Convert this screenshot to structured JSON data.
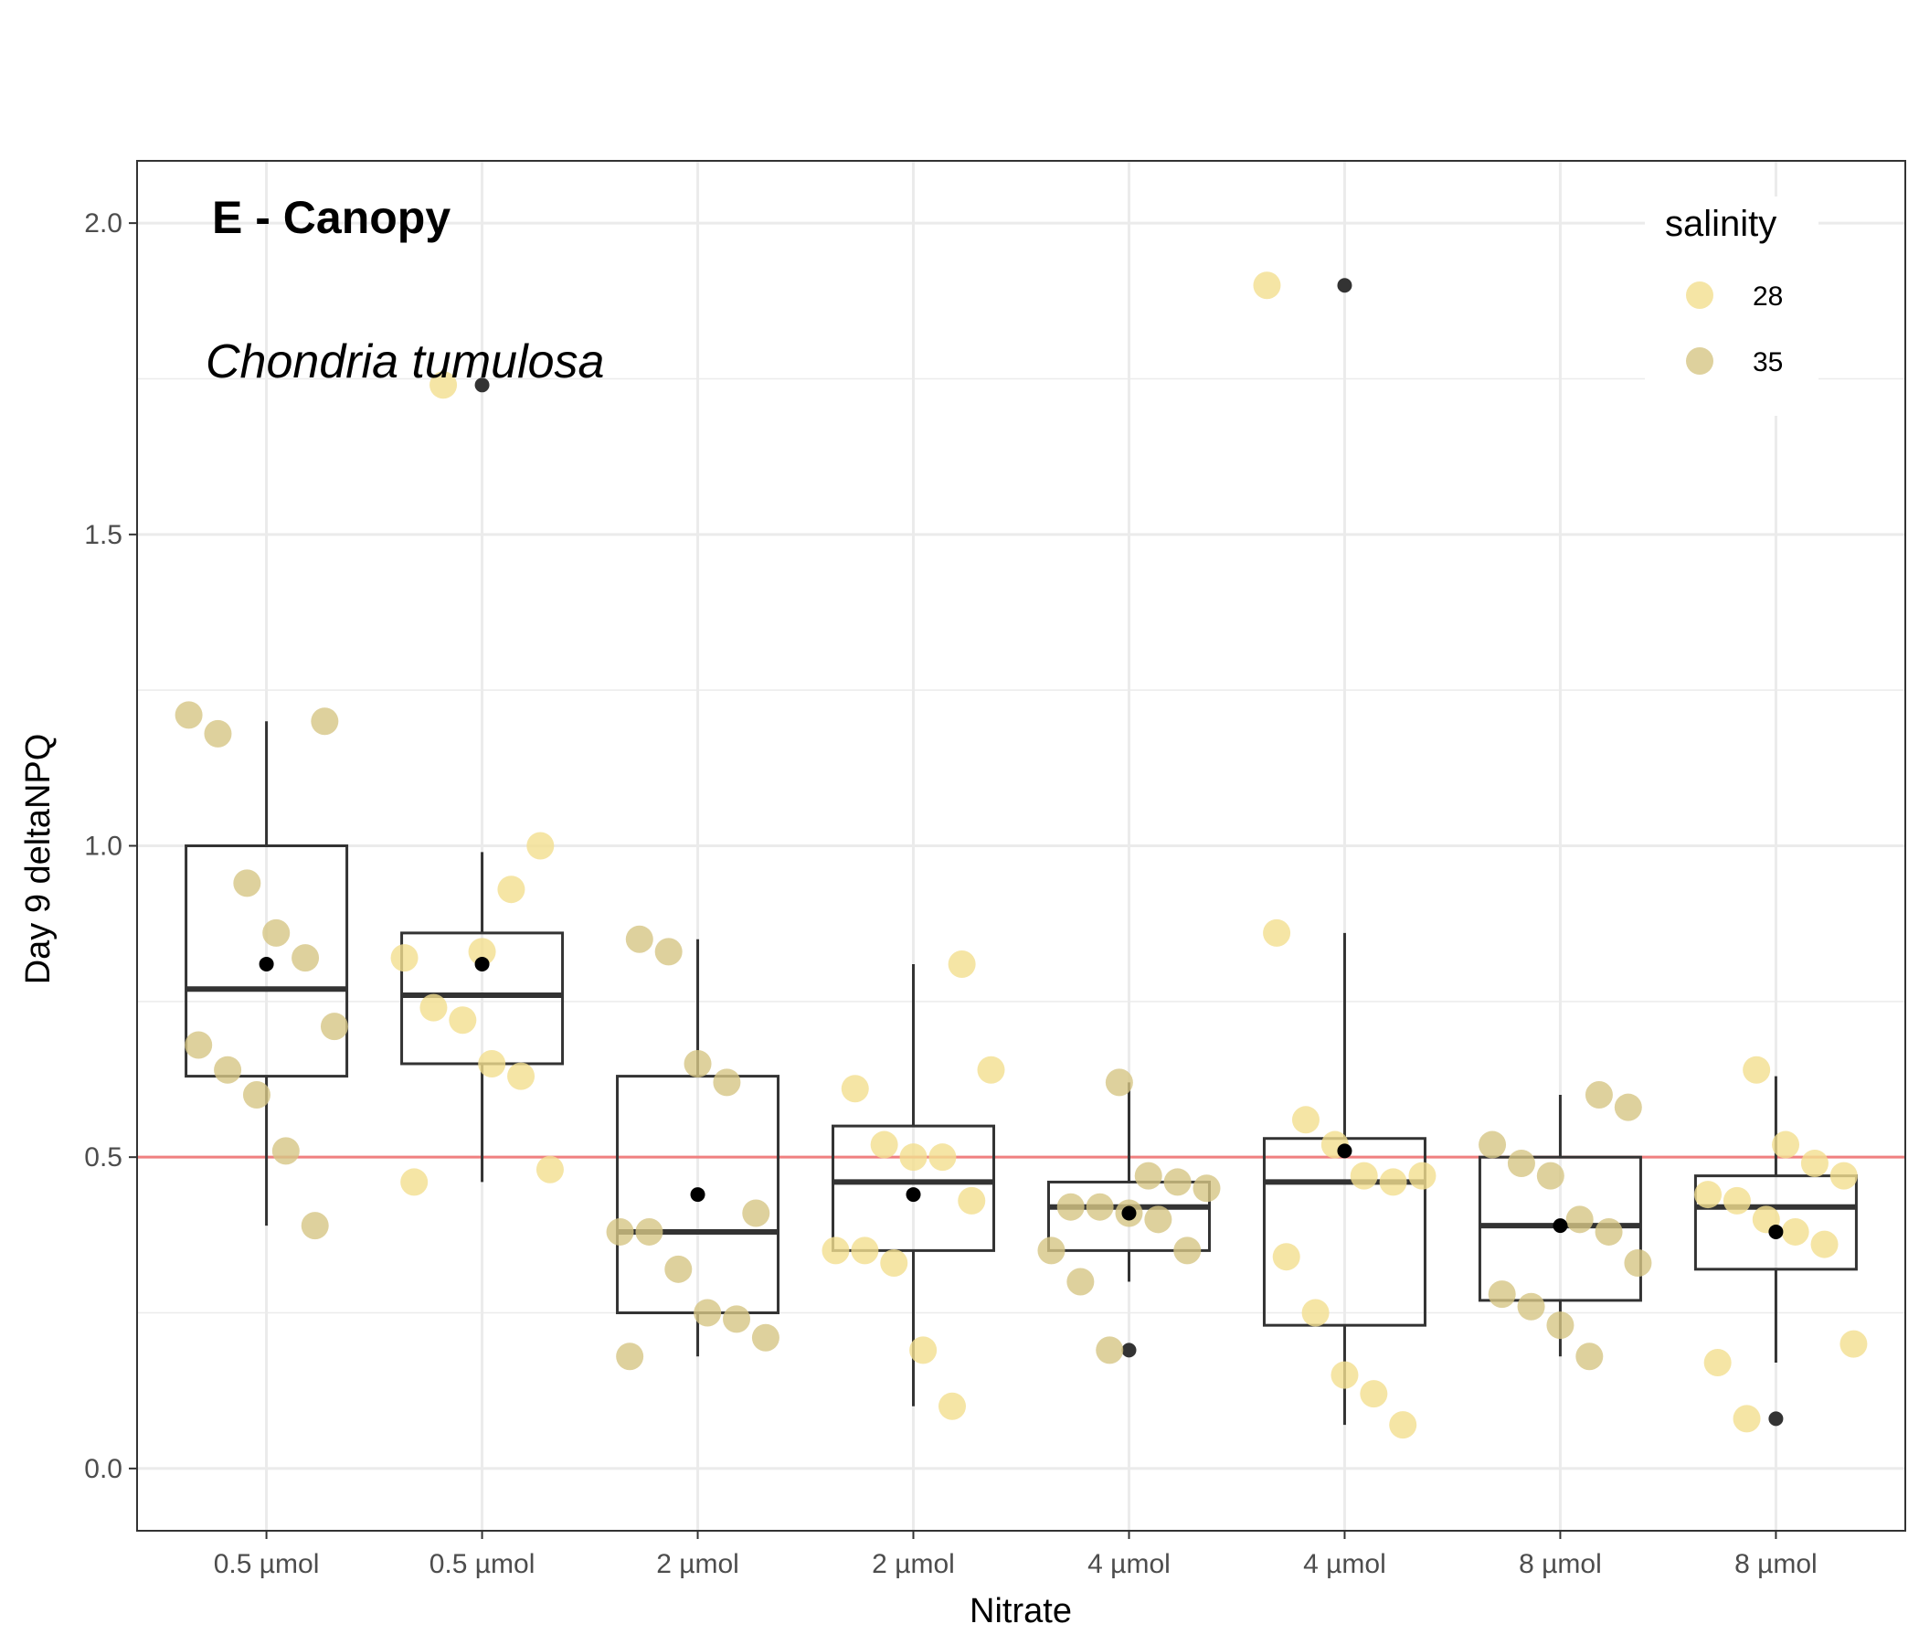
{
  "colors": {
    "s28": "#F2DF8E",
    "s35": "#D6C584",
    "reference_line": "#F08080",
    "box": "#333333",
    "mean_point": "#000000",
    "outlier": "#333333",
    "grid": "#EBEBEB",
    "panel_border": "#333333"
  },
  "chart_data": {
    "type": "box",
    "panel_label": "E - Canopy",
    "species_label": "Chondria tumulosa",
    "xlabel": "Nitrate",
    "ylabel": "Day 9 deltaNPQ",
    "categories": [
      "0.5 µmol",
      "0.5 µmol",
      "2 µmol",
      "2 µmol",
      "4 µmol",
      "4 µmol",
      "8 µmol",
      "8 µmol"
    ],
    "ylim": [
      -0.1,
      2.1
    ],
    "y_ticks": [
      0.0,
      0.5,
      1.0,
      1.5,
      2.0
    ],
    "y_tick_labels": [
      "0.0",
      "0.5",
      "1.0",
      "1.5",
      "2.0"
    ],
    "reference_line": 0.5,
    "grid": true,
    "legend": {
      "title": "salinity",
      "placement": "top-right",
      "entries": [
        {
          "label": "28",
          "color_key": "s28"
        },
        {
          "label": "35",
          "color_key": "s35"
        }
      ]
    },
    "boxes": [
      {
        "q1": 0.63,
        "median": 0.77,
        "q3": 1.0,
        "whisker_low": 0.39,
        "whisker_high": 1.2,
        "mean": 0.81,
        "outliers": []
      },
      {
        "q1": 0.65,
        "median": 0.76,
        "q3": 0.86,
        "whisker_low": 0.46,
        "whisker_high": 0.99,
        "mean": 0.81,
        "outliers": [
          1.74
        ]
      },
      {
        "q1": 0.25,
        "median": 0.38,
        "q3": 0.63,
        "whisker_low": 0.18,
        "whisker_high": 0.85,
        "mean": 0.44,
        "outliers": []
      },
      {
        "q1": 0.35,
        "median": 0.46,
        "q3": 0.55,
        "whisker_low": 0.1,
        "whisker_high": 0.81,
        "mean": 0.44,
        "outliers": []
      },
      {
        "q1": 0.35,
        "median": 0.42,
        "q3": 0.46,
        "whisker_low": 0.3,
        "whisker_high": 0.62,
        "mean": 0.41,
        "outliers": [
          0.19
        ]
      },
      {
        "q1": 0.23,
        "median": 0.46,
        "q3": 0.53,
        "whisker_low": 0.07,
        "whisker_high": 0.86,
        "mean": 0.51,
        "outliers": [
          1.9
        ]
      },
      {
        "q1": 0.27,
        "median": 0.39,
        "q3": 0.5,
        "whisker_low": 0.18,
        "whisker_high": 0.6,
        "mean": 0.39,
        "outliers": []
      },
      {
        "q1": 0.32,
        "median": 0.42,
        "q3": 0.47,
        "whisker_low": 0.17,
        "whisker_high": 0.63,
        "mean": 0.38,
        "outliers": [
          0.08
        ]
      }
    ],
    "series": [
      {
        "name": "28",
        "points": [
          {
            "x": 2,
            "y": 0.83
          },
          {
            "x": 2,
            "y": 0.93
          },
          {
            "x": 2,
            "y": 1.0
          },
          {
            "x": 2,
            "y": 0.82
          },
          {
            "x": 2,
            "y": 0.74
          },
          {
            "x": 2,
            "y": 0.72
          },
          {
            "x": 2,
            "y": 0.65
          },
          {
            "x": 2,
            "y": 0.63
          },
          {
            "x": 2,
            "y": 0.48
          },
          {
            "x": 2,
            "y": 0.46
          },
          {
            "x": 2,
            "y": 1.74
          },
          {
            "x": 4,
            "y": 0.81
          },
          {
            "x": 4,
            "y": 0.64
          },
          {
            "x": 4,
            "y": 0.61
          },
          {
            "x": 4,
            "y": 0.52
          },
          {
            "x": 4,
            "y": 0.5
          },
          {
            "x": 4,
            "y": 0.5
          },
          {
            "x": 4,
            "y": 0.43
          },
          {
            "x": 4,
            "y": 0.35
          },
          {
            "x": 4,
            "y": 0.35
          },
          {
            "x": 4,
            "y": 0.33
          },
          {
            "x": 4,
            "y": 0.19
          },
          {
            "x": 4,
            "y": 0.1
          },
          {
            "x": 6,
            "y": 0.86
          },
          {
            "x": 6,
            "y": 0.56
          },
          {
            "x": 6,
            "y": 0.52
          },
          {
            "x": 6,
            "y": 0.47
          },
          {
            "x": 6,
            "y": 0.46
          },
          {
            "x": 6,
            "y": 0.47
          },
          {
            "x": 6,
            "y": 0.34
          },
          {
            "x": 6,
            "y": 0.25
          },
          {
            "x": 6,
            "y": 0.15
          },
          {
            "x": 6,
            "y": 0.12
          },
          {
            "x": 6,
            "y": 0.07
          },
          {
            "x": 6,
            "y": 1.9
          },
          {
            "x": 8,
            "y": 0.64
          },
          {
            "x": 8,
            "y": 0.52
          },
          {
            "x": 8,
            "y": 0.49
          },
          {
            "x": 8,
            "y": 0.47
          },
          {
            "x": 8,
            "y": 0.44
          },
          {
            "x": 8,
            "y": 0.43
          },
          {
            "x": 8,
            "y": 0.4
          },
          {
            "x": 8,
            "y": 0.38
          },
          {
            "x": 8,
            "y": 0.36
          },
          {
            "x": 8,
            "y": 0.2
          },
          {
            "x": 8,
            "y": 0.17
          },
          {
            "x": 8,
            "y": 0.08
          }
        ]
      },
      {
        "name": "35",
        "points": [
          {
            "x": 1,
            "y": 1.2
          },
          {
            "x": 1,
            "y": 1.21
          },
          {
            "x": 1,
            "y": 1.18
          },
          {
            "x": 1,
            "y": 0.94
          },
          {
            "x": 1,
            "y": 0.86
          },
          {
            "x": 1,
            "y": 0.82
          },
          {
            "x": 1,
            "y": 0.71
          },
          {
            "x": 1,
            "y": 0.68
          },
          {
            "x": 1,
            "y": 0.64
          },
          {
            "x": 1,
            "y": 0.6
          },
          {
            "x": 1,
            "y": 0.51
          },
          {
            "x": 1,
            "y": 0.39
          },
          {
            "x": 3,
            "y": 0.85
          },
          {
            "x": 3,
            "y": 0.83
          },
          {
            "x": 3,
            "y": 0.65
          },
          {
            "x": 3,
            "y": 0.62
          },
          {
            "x": 3,
            "y": 0.41
          },
          {
            "x": 3,
            "y": 0.38
          },
          {
            "x": 3,
            "y": 0.38
          },
          {
            "x": 3,
            "y": 0.32
          },
          {
            "x": 3,
            "y": 0.25
          },
          {
            "x": 3,
            "y": 0.24
          },
          {
            "x": 3,
            "y": 0.21
          },
          {
            "x": 3,
            "y": 0.18
          },
          {
            "x": 5,
            "y": 0.62
          },
          {
            "x": 5,
            "y": 0.47
          },
          {
            "x": 5,
            "y": 0.46
          },
          {
            "x": 5,
            "y": 0.45
          },
          {
            "x": 5,
            "y": 0.42
          },
          {
            "x": 5,
            "y": 0.42
          },
          {
            "x": 5,
            "y": 0.41
          },
          {
            "x": 5,
            "y": 0.4
          },
          {
            "x": 5,
            "y": 0.35
          },
          {
            "x": 5,
            "y": 0.35
          },
          {
            "x": 5,
            "y": 0.3
          },
          {
            "x": 5,
            "y": 0.19
          },
          {
            "x": 7,
            "y": 0.6
          },
          {
            "x": 7,
            "y": 0.58
          },
          {
            "x": 7,
            "y": 0.52
          },
          {
            "x": 7,
            "y": 0.49
          },
          {
            "x": 7,
            "y": 0.47
          },
          {
            "x": 7,
            "y": 0.4
          },
          {
            "x": 7,
            "y": 0.38
          },
          {
            "x": 7,
            "y": 0.33
          },
          {
            "x": 7,
            "y": 0.28
          },
          {
            "x": 7,
            "y": 0.26
          },
          {
            "x": 7,
            "y": 0.23
          },
          {
            "x": 7,
            "y": 0.18
          }
        ]
      }
    ]
  }
}
